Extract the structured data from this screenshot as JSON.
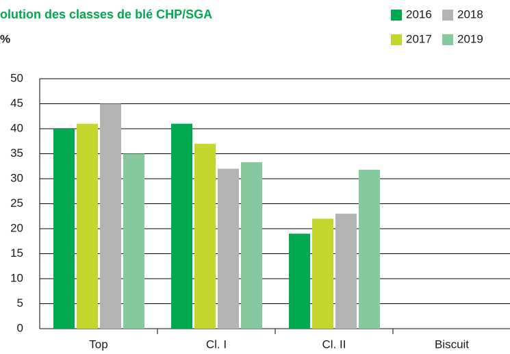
{
  "chart_data": {
    "type": "bar",
    "title": "olution des classes de blé CHP/SGA",
    "subtitle": "%",
    "categories": [
      "Top",
      "Cl. I",
      "Cl. II",
      "Biscuit"
    ],
    "series": [
      {
        "name": "2016",
        "color": "#00a84f",
        "values": [
          40,
          41,
          19,
          null
        ]
      },
      {
        "name": "2017",
        "color": "#c5d62e",
        "values": [
          41,
          37,
          22,
          null
        ]
      },
      {
        "name": "2018",
        "color": "#b3b3b3",
        "values": [
          45,
          32,
          23,
          null
        ]
      },
      {
        "name": "2019",
        "color": "#86c99e",
        "values": [
          35,
          33.3,
          31.8,
          null
        ]
      }
    ],
    "ylim": [
      0,
      50
    ],
    "yticks": [
      0,
      5,
      10,
      15,
      20,
      25,
      30,
      35,
      40,
      45,
      50
    ],
    "grid": true,
    "legend": "top-right"
  }
}
